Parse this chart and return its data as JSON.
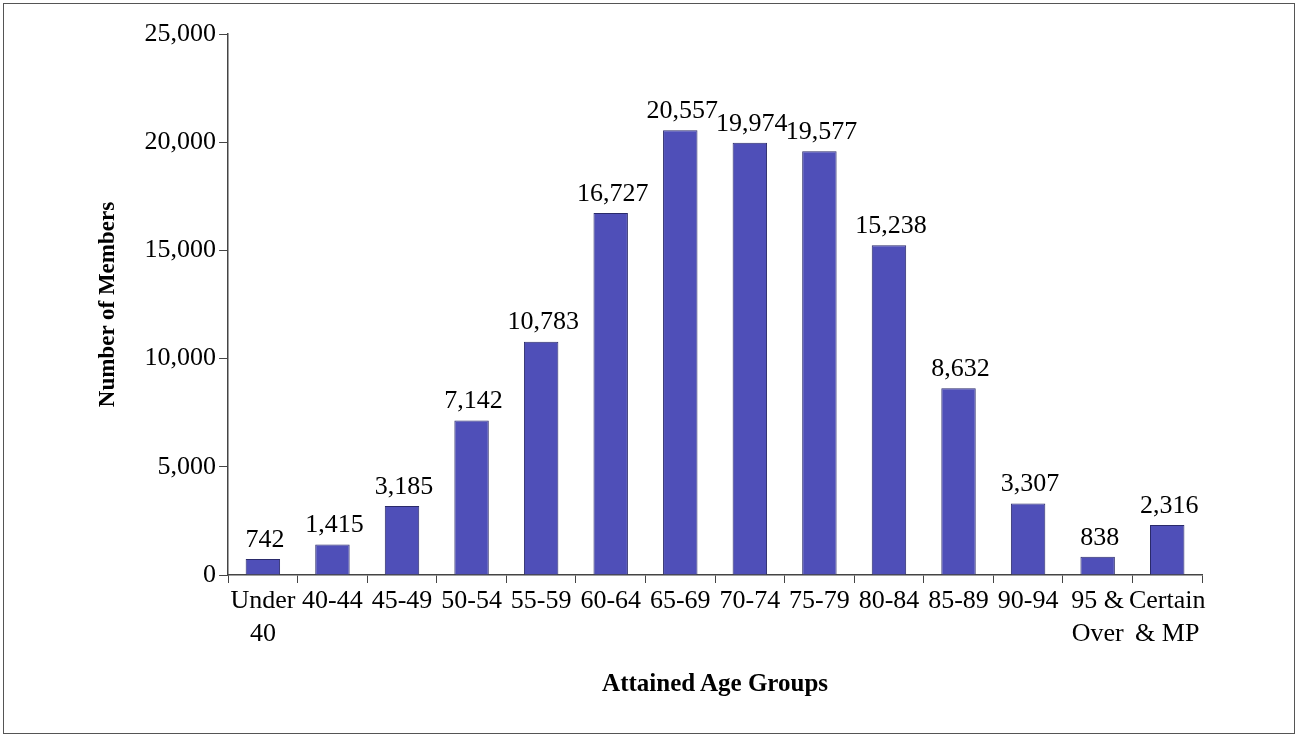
{
  "chart_data": {
    "type": "bar",
    "xlabel": "Attained Age Groups",
    "ylabel": "Number of Members",
    "categories": [
      "Under 40",
      "40-44",
      "45-49",
      "50-54",
      "55-59",
      "60-64",
      "65-69",
      "70-74",
      "75-79",
      "80-84",
      "85-89",
      "90-94",
      "95 & Over",
      "Certain & MP"
    ],
    "values": [
      742,
      1415,
      3185,
      7142,
      10783,
      16727,
      20557,
      19974,
      19577,
      15238,
      8632,
      3307,
      838,
      2316
    ],
    "value_labels": [
      "742",
      "1,415",
      "3,185",
      "7,142",
      "10,783",
      "16,727",
      "20,557",
      "19,974",
      "19,577",
      "15,238",
      "8,632",
      "3,307",
      "838",
      "2,316"
    ],
    "color": "#4f4fb8",
    "ylim": [
      0,
      25000
    ],
    "yticks": [
      {
        "value": 0,
        "label": "0"
      },
      {
        "value": 5000,
        "label": "5,000"
      },
      {
        "value": 10000,
        "label": "10,000"
      },
      {
        "value": 15000,
        "label": "15,000"
      },
      {
        "value": 20000,
        "label": "20,000"
      },
      {
        "value": 25000,
        "label": "25,000"
      }
    ]
  }
}
